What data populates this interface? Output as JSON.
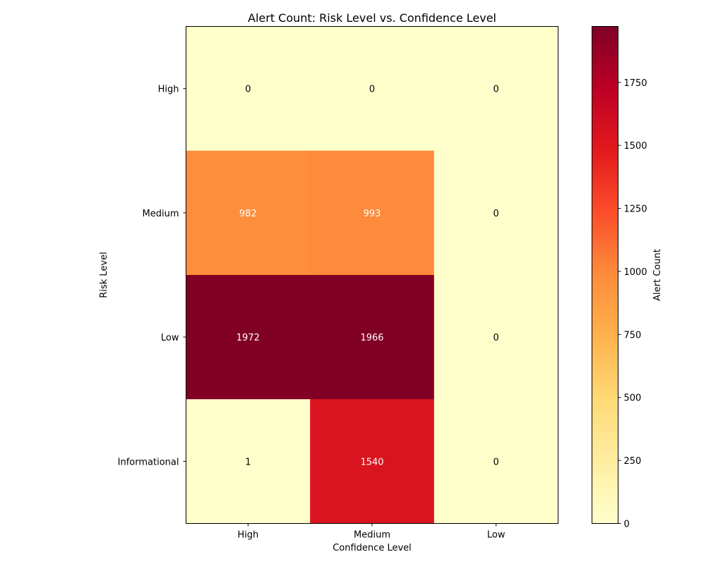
{
  "chart_data": {
    "type": "heatmap",
    "title": "Alert Count: Risk Level vs. Confidence Level",
    "xlabel": "Confidence Level",
    "ylabel": "Risk Level",
    "x_categories": [
      "High",
      "Medium",
      "Low"
    ],
    "y_categories": [
      "High",
      "Medium",
      "Low",
      "Informational"
    ],
    "values": [
      [
        0,
        0,
        0
      ],
      [
        982,
        993,
        0
      ],
      [
        1972,
        1966,
        0
      ],
      [
        1,
        1540,
        0
      ]
    ],
    "colorbar": {
      "label": "Alert Count",
      "range": [
        0,
        1972
      ],
      "ticks": [
        0,
        250,
        500,
        750,
        1000,
        1250,
        1500,
        1750
      ],
      "colormap": "YlOrRd",
      "stops": [
        "#ffffcc",
        "#ffeda0",
        "#fed976",
        "#feb24c",
        "#fd8d3c",
        "#fc4e2a",
        "#e31a1c",
        "#bd0026",
        "#800026"
      ]
    },
    "grid": false
  }
}
